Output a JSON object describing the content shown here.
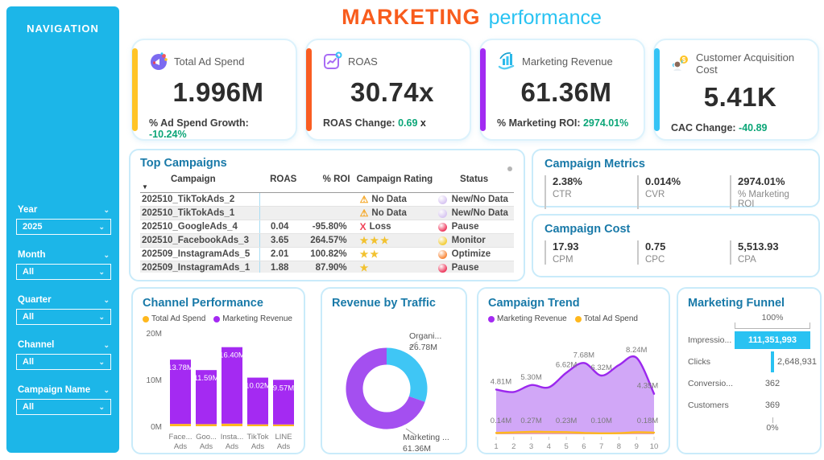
{
  "title": {
    "primary": "MARKETING",
    "secondary": "performance"
  },
  "colors": {
    "sidebar": "#1cb6e8",
    "accent_yellow": "#ffc426",
    "accent_orange": "#f95d22",
    "accent_purple": "#a22bf2",
    "accent_cyan": "#35c3f5",
    "green": "#0ca678",
    "bar_purple": "#a42af2",
    "bar_yellow": "#ffb81e",
    "donut_cyan": "#3fc6f5",
    "donut_purple": "#a44ff0",
    "funnel_cyan": "#29c2f2",
    "panel_title": "#1879a8"
  },
  "sidebar": {
    "title": "NAVIGATION",
    "filters": [
      {
        "label": "Year",
        "value": "2025"
      },
      {
        "label": "Month",
        "value": "All"
      },
      {
        "label": "Quarter",
        "value": "All"
      },
      {
        "label": "Channel",
        "value": "All"
      },
      {
        "label": "Campaign Name",
        "value": "All"
      }
    ]
  },
  "kpis": [
    {
      "icon": "megaphone-icon",
      "label": "Total Ad Spend",
      "value": "1.996M",
      "sub_prefix": "% Ad Spend Growth: ",
      "sub_value": "-10.24%",
      "sub_suffix": "",
      "accent": "#ffc426"
    },
    {
      "icon": "roas-chart-icon",
      "label": "ROAS",
      "value": "30.74x",
      "sub_prefix": "ROAS Change: ",
      "sub_value": "0.69",
      "sub_suffix": " x",
      "accent": "#f95d22"
    },
    {
      "icon": "revenue-hand-icon",
      "label": "Marketing Revenue",
      "value": "61.36M",
      "sub_prefix": "% Marketing ROI: ",
      "sub_value": "2974.01%",
      "sub_suffix": "",
      "accent": "#a22bf2"
    },
    {
      "icon": "customer-coin-icon",
      "label": "Customer Acquisition Cost",
      "value": "5.41K",
      "sub_prefix": "CAC Change: ",
      "sub_value": "-40.89",
      "sub_suffix": "",
      "accent": "#35c3f5"
    }
  ],
  "top_campaigns": {
    "title": "Top Campaigns",
    "columns": [
      "Campaign",
      "ROAS",
      "% ROI",
      "Campaign Rating",
      "Status"
    ],
    "rows": [
      {
        "campaign": "202510_TikTokAds_2",
        "roas": "",
        "roi": "",
        "rating": {
          "type": "warning",
          "label": "No Data"
        },
        "status": {
          "label": "New/No Data",
          "color": "#d8c6f2"
        }
      },
      {
        "campaign": "202510_TikTokAds_1",
        "roas": "",
        "roi": "",
        "rating": {
          "type": "warning",
          "label": "No Data"
        },
        "status": {
          "label": "New/No Data",
          "color": "#d8c6f2"
        }
      },
      {
        "campaign": "202510_GoogleAds_4",
        "roas": "0.04",
        "roi": "-95.80%",
        "rating": {
          "type": "loss",
          "label": "Loss"
        },
        "status": {
          "label": "Pause",
          "color": "#ee3b5f"
        }
      },
      {
        "campaign": "202510_FacebookAds_3",
        "roas": "3.65",
        "roi": "264.57%",
        "rating": {
          "type": "stars",
          "count": 3
        },
        "status": {
          "label": "Monitor",
          "color": "#f2ce3a"
        }
      },
      {
        "campaign": "202509_InstagramAds_5",
        "roas": "2.01",
        "roi": "100.82%",
        "rating": {
          "type": "stars",
          "count": 2
        },
        "status": {
          "label": "Optimize",
          "color": "#f8883b"
        }
      },
      {
        "campaign": "202509_InstagramAds_1",
        "roas": "1.88",
        "roi": "87.90%",
        "rating": {
          "type": "stars",
          "count": 1
        },
        "status": {
          "label": "Pause",
          "color": "#ee3b5f"
        }
      }
    ]
  },
  "campaign_metrics": {
    "title": "Campaign Metrics",
    "stats": [
      {
        "value": "2.38%",
        "label": "CTR"
      },
      {
        "value": "0.014%",
        "label": "CVR"
      },
      {
        "value": "2974.01%",
        "label": "% Marketing ROI"
      }
    ]
  },
  "campaign_cost": {
    "title": "Campaign Cost",
    "stats": [
      {
        "value": "17.93",
        "label": "CPM"
      },
      {
        "value": "0.75",
        "label": "CPC"
      },
      {
        "value": "5,513.93",
        "label": "CPA"
      }
    ]
  },
  "chart_data": [
    {
      "id": "channel_performance",
      "type": "bar",
      "title": "Channel Performance",
      "legend": [
        {
          "name": "Total Ad Spend",
          "color": "#ffb81e"
        },
        {
          "name": "Marketing Revenue",
          "color": "#a42af2"
        }
      ],
      "categories": [
        [
          "Face...",
          "Ads"
        ],
        [
          "Goo...",
          "Ads"
        ],
        [
          "Insta...",
          "Ads"
        ],
        [
          "TikTok",
          "Ads"
        ],
        [
          "LINE",
          "Ads"
        ]
      ],
      "series": [
        {
          "name": "Total Ad Spend",
          "color": "#ffb81e",
          "values": [
            0.5,
            0.45,
            0.55,
            0.4,
            0.38
          ]
        },
        {
          "name": "Marketing Revenue",
          "color": "#a42af2",
          "values": [
            13.78,
            11.59,
            16.4,
            10.02,
            9.57
          ]
        }
      ],
      "bar_labels": [
        "13.78M",
        "11.59M",
        "16.40M",
        "10.02M",
        "9.57M"
      ],
      "ylabel_ticks": [
        "20M",
        "10M",
        "0M"
      ],
      "ylim": [
        0,
        20
      ]
    },
    {
      "id": "revenue_by_traffic",
      "type": "donut",
      "title": "Revenue by Traffic",
      "slices": [
        {
          "label": "Organi...",
          "value": 26.78,
          "display": "26.78M",
          "color": "#3fc6f5"
        },
        {
          "label": "Marketing ...",
          "value": 61.36,
          "display": "61.36M",
          "color": "#a44ff0"
        }
      ]
    },
    {
      "id": "campaign_trend",
      "type": "area",
      "title": "Campaign Trend",
      "legend": [
        {
          "name": "Marketing Revenue",
          "color": "#a42af2"
        },
        {
          "name": "Total Ad Spend",
          "color": "#ffb81e"
        }
      ],
      "x": [
        1,
        2,
        3,
        4,
        5,
        6,
        7,
        8,
        9,
        10
      ],
      "ylim": [
        0,
        9
      ],
      "series": [
        {
          "name": "Marketing Revenue",
          "color": "#9b27ee",
          "fill": "rgba(164,79,240,0.50)",
          "values": [
            4.81,
            4.55,
            5.3,
            5.05,
            6.62,
            7.68,
            6.32,
            7.45,
            8.24,
            4.35
          ],
          "labels": {
            "1": "4.81M",
            "3": "5.30M",
            "5": "6.62M",
            "6": "7.68M",
            "7": "6.32M",
            "9": "8.24M",
            "10": "4.35M"
          }
        },
        {
          "name": "Total Ad Spend",
          "color": "#ffb81e",
          "fill": "rgba(255,160,90,0.45)",
          "values": [
            0.14,
            0.2,
            0.27,
            0.25,
            0.23,
            0.15,
            0.1,
            0.12,
            0.22,
            0.18
          ],
          "labels": {
            "1": "0.14M",
            "3": "0.27M",
            "5": "0.23M",
            "7": "0.10M",
            "10": "0.18M"
          }
        }
      ]
    },
    {
      "id": "marketing_funnel",
      "type": "funnel",
      "title": "Marketing Funnel",
      "top_label": "100%",
      "bottom_label": "0%",
      "stages": [
        {
          "label": "Impressio...",
          "value": "111,351,993",
          "pct": 100,
          "value_pos": "inside"
        },
        {
          "label": "Clicks",
          "value": "2,648,931",
          "pct": 2.4,
          "value_pos": "right"
        },
        {
          "label": "Conversio...",
          "value": "362",
          "pct": 0,
          "value_pos": "center"
        },
        {
          "label": "Customers",
          "value": "369",
          "pct": 0,
          "value_pos": "center"
        }
      ]
    }
  ]
}
